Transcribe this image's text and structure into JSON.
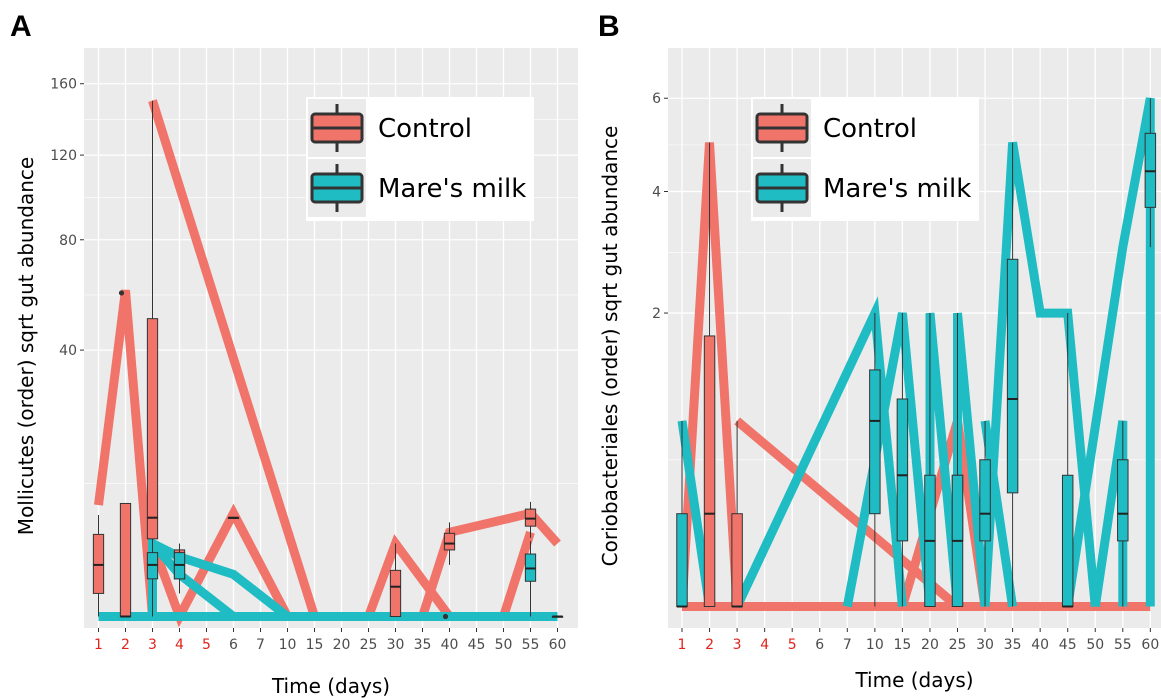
{
  "panels": {
    "A": {
      "label": "A"
    },
    "B": {
      "label": "B"
    }
  },
  "colors": {
    "control": "#f0746a",
    "mares_milk": "#1fbcc4",
    "panel_bg": "#ebebeb",
    "grid": "#ffffff",
    "early_tick": "#e0241b"
  },
  "chart_data": [
    {
      "type": "line",
      "panel": "A",
      "xlabel": "Time (days)",
      "ylabel": "Mollicutes (order) sqrt gut abundance",
      "y_scale": "sqrt",
      "ylim": [
        0,
        160
      ],
      "y_ticks": [
        40,
        80,
        120,
        160
      ],
      "categories": [
        "1",
        "2",
        "3",
        "4",
        "5",
        "6",
        "7",
        "10",
        "15",
        "20",
        "25",
        "30",
        "35",
        "40",
        "45",
        "50",
        "55",
        "60"
      ],
      "red_tick_labels": [
        "1",
        "2",
        "3",
        "4",
        "5"
      ],
      "legend": {
        "position": "top-right",
        "entries": [
          "Control",
          "Mare's milk"
        ]
      },
      "series": [
        {
          "name": "Control",
          "lines": [
            [
              [
                "1",
                7
              ],
              [
                "2",
                60
              ],
              [
                "3",
                0
              ]
            ],
            [
              [
                "3",
                150
              ],
              [
                "15",
                0
              ],
              [
                "25",
                0
              ],
              [
                "30",
                3
              ],
              [
                "40",
                0
              ]
            ],
            [
              [
                "3",
                3
              ],
              [
                "4",
                0
              ],
              [
                "6",
                6
              ],
              [
                "10",
                0
              ],
              [
                "15",
                0
              ]
            ],
            [
              [
                "35",
                0
              ],
              [
                "40",
                4
              ],
              [
                "55",
                6
              ],
              [
                "60",
                3
              ]
            ],
            [
              [
                "50",
                0
              ],
              [
                "55",
                4
              ]
            ]
          ],
          "boxes": [
            {
              "x": "1",
              "q1": 0.3,
              "median": 1.5,
              "q3": 3.8,
              "lower": 0,
              "upper": 5.8
            },
            {
              "x": "2",
              "q1": 0,
              "median": 0,
              "q3": 7.2,
              "lower": 0,
              "upper": 7.2
            },
            {
              "x": "3",
              "q1": 3.4,
              "median": 5.5,
              "q3": 50,
              "lower": 0,
              "upper": 150
            },
            {
              "x": "4",
              "q1": 0.8,
              "median": 1.5,
              "q3": 2.5,
              "lower": 0.3,
              "upper": 2.9
            },
            {
              "x": "6",
              "q1": 5.5,
              "median": 5.5,
              "q3": 5.5,
              "lower": 5.5,
              "upper": 5.5
            },
            {
              "x": "30",
              "q1": 0,
              "median": 0.5,
              "q3": 1.2,
              "lower": 0,
              "upper": 3
            },
            {
              "x": "40",
              "q1": 2.5,
              "median": 3,
              "q3": 3.9,
              "lower": 1.5,
              "upper": 5
            },
            {
              "x": "55",
              "q1": 4.6,
              "median": 5.4,
              "q3": 6.5,
              "lower": 3.5,
              "upper": 7.4
            }
          ],
          "outliers": [
            [
              "2",
              59
            ],
            [
              "40",
              0
            ]
          ]
        },
        {
          "name": "Mare's milk",
          "lines": [
            [
              [
                "1",
                0
              ],
              [
                "60",
                0
              ]
            ],
            [
              [
                "3",
                0
              ],
              [
                "3",
                3
              ],
              [
                "4",
                2
              ],
              [
                "6",
                1
              ],
              [
                "10",
                0
              ]
            ],
            [
              [
                "3",
                3
              ],
              [
                "4",
                1
              ],
              [
                "6",
                0
              ]
            ]
          ],
          "boxes": [
            {
              "x": "3",
              "q1": 0.8,
              "median": 1.5,
              "q3": 2.3,
              "lower": 0.3,
              "upper": 3
            },
            {
              "x": "4",
              "q1": 0.8,
              "median": 1.5,
              "q3": 2.3,
              "lower": 0.3,
              "upper": 3
            },
            {
              "x": "55",
              "q1": 0.7,
              "median": 1.3,
              "q3": 2.2,
              "lower": 0,
              "upper": 3.2
            },
            {
              "x": "60",
              "q1": 0,
              "median": 0,
              "q3": 0,
              "lower": 0,
              "upper": 0
            }
          ],
          "outliers": []
        }
      ]
    },
    {
      "type": "line",
      "panel": "B",
      "xlabel": "Time (days)",
      "ylabel": "Coriobacteriales (order) sqrt gut abundance",
      "y_scale": "sqrt",
      "ylim": [
        0,
        6
      ],
      "y_ticks": [
        2,
        4,
        6
      ],
      "categories": [
        "1",
        "2",
        "3",
        "4",
        "5",
        "6",
        "7",
        "10",
        "15",
        "20",
        "25",
        "30",
        "35",
        "40",
        "45",
        "50",
        "55",
        "60"
      ],
      "red_tick_labels": [
        "1",
        "2",
        "3",
        "4",
        "5"
      ],
      "legend": {
        "position": "top-left",
        "entries": [
          "Control",
          "Mare's milk"
        ]
      },
      "series": [
        {
          "name": "Control",
          "lines": [
            [
              [
                "1",
                0
              ],
              [
                "60",
                0
              ]
            ],
            [
              [
                "1",
                0
              ],
              [
                "2",
                5
              ],
              [
                "3",
                0
              ]
            ],
            [
              [
                "3",
                0.8
              ],
              [
                "25",
                0
              ]
            ],
            [
              [
                "15",
                0
              ],
              [
                "25",
                0.8
              ],
              [
                "30",
                0
              ]
            ]
          ],
          "boxes": [
            {
              "x": "2",
              "q1": 0,
              "median": 0.2,
              "q3": 1.7,
              "lower": 0,
              "upper": 5
            },
            {
              "x": "3",
              "q1": 0,
              "median": 0,
              "q3": 0.2,
              "lower": 0,
              "upper": 0.8
            },
            {
              "x": "25",
              "q1": 0.1,
              "median": 0.2,
              "q3": 0.4,
              "lower": 0,
              "upper": 0.8
            }
          ],
          "outliers": []
        },
        {
          "name": "Mare's milk",
          "lines": [
            [
              [
                "1",
                0.8
              ],
              [
                "2",
                0
              ]
            ],
            [
              [
                "3",
                0
              ],
              [
                "10",
                2
              ],
              [
                "15",
                0
              ]
            ],
            [
              [
                "7",
                0
              ],
              [
                "15",
                2
              ],
              [
                "20",
                0
              ],
              [
                "20",
                2
              ],
              [
                "25",
                0
              ],
              [
                "25",
                2
              ],
              [
                "30",
                0
              ]
            ],
            [
              [
                "30",
                0.8
              ],
              [
                "35",
                0
              ]
            ],
            [
              [
                "30",
                0
              ],
              [
                "35",
                5
              ],
              [
                "40",
                2
              ],
              [
                "45",
                2
              ],
              [
                "50",
                0
              ]
            ],
            [
              [
                "45",
                0
              ],
              [
                "55",
                3
              ],
              [
                "60",
                6
              ],
              [
                "60",
                0
              ]
            ],
            [
              [
                "50",
                0
              ],
              [
                "55",
                0.8
              ],
              [
                "55",
                0
              ]
            ]
          ],
          "boxes": [
            {
              "x": "1",
              "q1": 0,
              "median": 0,
              "q3": 0.2,
              "lower": 0,
              "upper": 0.8
            },
            {
              "x": "10",
              "q1": 0.2,
              "median": 0.8,
              "q3": 1.3,
              "lower": 0,
              "upper": 2
            },
            {
              "x": "15",
              "q1": 0.1,
              "median": 0.4,
              "q3": 1.0,
              "lower": 0,
              "upper": 2
            },
            {
              "x": "20",
              "q1": 0,
              "median": 0.1,
              "q3": 0.4,
              "lower": 0,
              "upper": 2
            },
            {
              "x": "25",
              "q1": 0,
              "median": 0.1,
              "q3": 0.4,
              "lower": 0,
              "upper": 2
            },
            {
              "x": "30",
              "q1": 0.1,
              "median": 0.2,
              "q3": 0.5,
              "lower": 0,
              "upper": 0.8
            },
            {
              "x": "35",
              "q1": 0.3,
              "median": 1.0,
              "q3": 2.8,
              "lower": 0,
              "upper": 5
            },
            {
              "x": "45",
              "q1": 0,
              "median": 0,
              "q3": 0.4,
              "lower": 0,
              "upper": 2
            },
            {
              "x": "55",
              "q1": 0.1,
              "median": 0.2,
              "q3": 0.5,
              "lower": 0,
              "upper": 0.8
            },
            {
              "x": "60",
              "q1": 3.7,
              "median": 4.4,
              "q3": 5.2,
              "lower": 3,
              "upper": 6
            }
          ],
          "outliers": []
        }
      ]
    }
  ]
}
